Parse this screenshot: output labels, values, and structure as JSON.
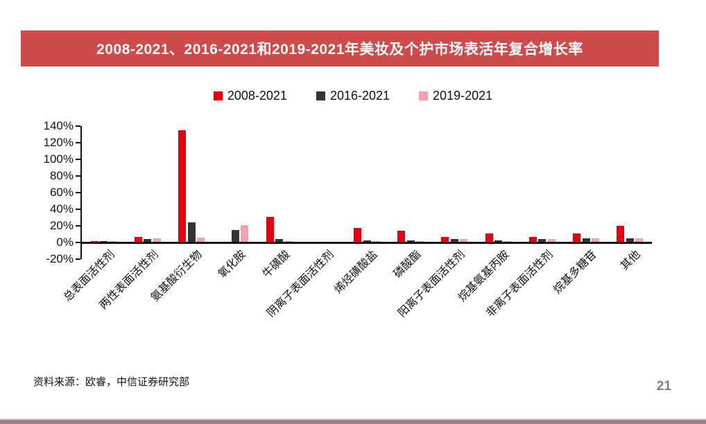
{
  "page": {
    "source": "资料来源：欧睿，中信证券研究部",
    "page_number": "21"
  },
  "colors": {
    "banner": "#CE4A4B",
    "series_2008": "#E60012",
    "series_2016": "#333333",
    "series_2019": "#F4A0B0"
  },
  "chart_data": {
    "type": "bar",
    "title": "2008-2021、2016-2021和2019-2021年美妆及个护市场表活年复合增长率",
    "categories": [
      "总表面活性剂",
      "两性表面活性剂",
      "氨基酸衍生物",
      "氧化胺",
      "牛磺酸",
      "阴离子表面活性剂",
      "烯烃磺酸盐",
      "磷酸酯",
      "阳离子表面活性剂",
      "烷基氨基丙胺",
      "非离子表面活性剂",
      "烷基多糖苷",
      "其他"
    ],
    "series": [
      {
        "name": "2008-2021",
        "color_key": "series_2008",
        "values": [
          1,
          6,
          134,
          0,
          30,
          0,
          17,
          13,
          6,
          10,
          6,
          10,
          19
        ]
      },
      {
        "name": "2016-2021",
        "color_key": "series_2016",
        "values": [
          1,
          3,
          23,
          14,
          3,
          0,
          1.5,
          2,
          3,
          1.5,
          3.5,
          4,
          4.5
        ]
      },
      {
        "name": "2019-2021",
        "color_key": "series_2019",
        "values": [
          1,
          4,
          5,
          20,
          1,
          0,
          0.5,
          0.5,
          3,
          1,
          3,
          4,
          4
        ]
      }
    ],
    "ylabel": "",
    "xlabel": "",
    "ylim": [
      -20,
      140
    ],
    "ytick_step": 20,
    "ytick_labels": [
      "140%",
      "120%",
      "100%",
      "80%",
      "60%",
      "40%",
      "20%",
      "0%",
      "-20%"
    ],
    "y_axis_format": "percent",
    "legend_position": "top",
    "grid": false
  }
}
